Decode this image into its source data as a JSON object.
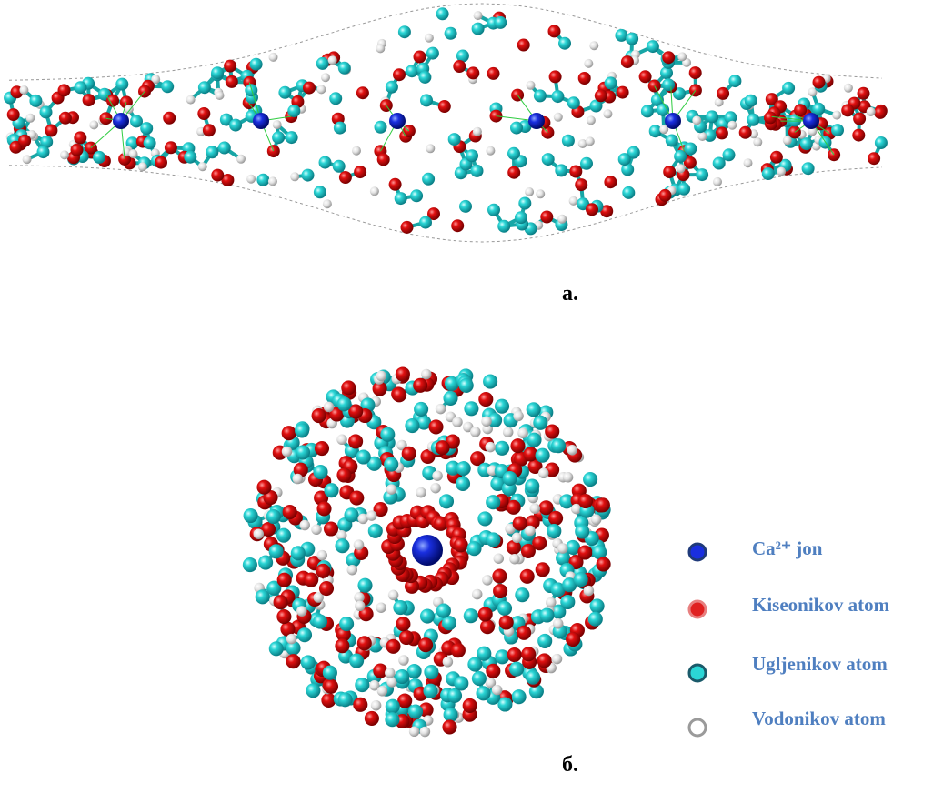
{
  "figure": {
    "panel_a": {
      "label": "а."
    },
    "panel_b": {
      "label": "б."
    },
    "legend": [
      {
        "label": "Ca²⁺ jon"
      },
      {
        "label": "Kiseonikov atom"
      },
      {
        "label": "Ugljenikov atom"
      },
      {
        "label": "Vodonikov atom"
      }
    ]
  }
}
